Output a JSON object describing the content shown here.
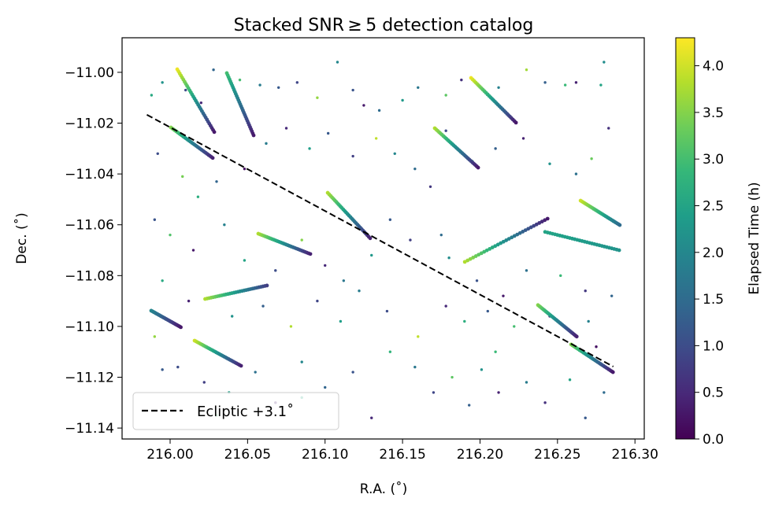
{
  "chart_data": {
    "type": "scatter",
    "title": "Stacked SNR ≥ 5 detection catalog",
    "xlabel": "R.A. (˚)",
    "ylabel": "Dec. (˚)",
    "xlim": [
      215.969,
      216.306
    ],
    "ylim": [
      -11.1443,
      -10.9864
    ],
    "xticks": [
      216.0,
      216.05,
      216.1,
      216.15,
      216.2,
      216.25,
      216.3
    ],
    "xtick_labels": [
      "216.00",
      "216.05",
      "216.10",
      "216.15",
      "216.20",
      "216.25",
      "216.30"
    ],
    "yticks": [
      -11.0,
      -11.02,
      -11.04,
      -11.06,
      -11.08,
      -11.1,
      -11.12,
      -11.14
    ],
    "ytick_labels": [
      "−11.00",
      "−11.02",
      "−11.04",
      "−11.06",
      "−11.08",
      "−11.10",
      "−11.12",
      "−11.14"
    ],
    "grid": false,
    "colorbar": {
      "label": "Elapsed Time (h)",
      "colormap": "viridis",
      "range": [
        0.0,
        4.3
      ],
      "ticks": [
        0.0,
        0.5,
        1.0,
        1.5,
        2.0,
        2.5,
        3.0,
        3.5,
        4.0
      ],
      "tick_labels": [
        "0.0",
        "0.5",
        "1.0",
        "1.5",
        "2.0",
        "2.5",
        "3.0",
        "3.5",
        "4.0"
      ]
    },
    "legend": {
      "placement": "lower-left",
      "entries": [
        {
          "label": "Ecliptic +3.1˚",
          "style": "dashed",
          "color": "#000000"
        }
      ]
    },
    "ecliptic_line": {
      "ra": [
        215.985,
        216.286
      ],
      "dec": [
        -11.0167,
        -11.1158
      ]
    },
    "tracks": [
      {
        "ra": [
          216.0046,
          216.0285
        ],
        "dec": [
          -10.9988,
          -11.0235
        ],
        "t": [
          4.2,
          0.3
        ]
      },
      {
        "ra": [
          216.0366,
          216.0539
        ],
        "dec": [
          -11.0003,
          -11.0248
        ],
        "t": [
          3.0,
          0.3
        ]
      },
      {
        "ra": [
          216.0005,
          216.0275
        ],
        "dec": [
          -11.0217,
          -11.0337
        ],
        "t": [
          3.5,
          0.4
        ]
      },
      {
        "ra": [
          216.1942,
          216.2232
        ],
        "dec": [
          -11.0022,
          -11.0198
        ],
        "t": [
          4.2,
          0.3
        ]
      },
      {
        "ra": [
          216.1708,
          216.1988
        ],
        "dec": [
          -11.022,
          -11.0375
        ],
        "t": [
          3.8,
          0.3
        ]
      },
      {
        "ra": [
          216.1017,
          216.1291
        ],
        "dec": [
          -11.0474,
          -11.0653
        ],
        "t": [
          3.8,
          0.4
        ]
      },
      {
        "ra": [
          216.0569,
          216.0905
        ],
        "dec": [
          -11.0635,
          -11.0715
        ],
        "t": [
          3.8,
          0.4
        ]
      },
      {
        "ra": [
          216.1902,
          216.2436
        ],
        "dec": [
          -11.0746,
          -11.0576
        ],
        "t": [
          3.8,
          0.3
        ]
      },
      {
        "ra": [
          216.0226,
          216.0625
        ],
        "dec": [
          -11.0892,
          -11.0839
        ],
        "t": [
          3.8,
          0.8
        ]
      },
      {
        "ra": [
          215.9878,
          216.0069
        ],
        "dec": [
          -11.0938,
          -11.1003
        ],
        "t": [
          2.0,
          0.3
        ]
      },
      {
        "ra": [
          216.0158,
          216.0458
        ],
        "dec": [
          -11.1056,
          -11.1155
        ],
        "t": [
          4.0,
          0.4
        ]
      },
      {
        "ra": [
          216.2374,
          216.2624
        ],
        "dec": [
          -11.0916,
          -11.104
        ],
        "t": [
          3.5,
          0.4
        ]
      },
      {
        "ra": [
          216.2649,
          216.2902
        ],
        "dec": [
          -11.0505,
          -11.0601
        ],
        "t": [
          4.0,
          1.5
        ]
      },
      {
        "ra": [
          216.242,
          216.2898
        ],
        "dec": [
          -11.0628,
          -11.07
        ],
        "t": [
          2.5,
          2.2
        ]
      },
      {
        "ra": [
          216.2588,
          216.2858
        ],
        "dec": [
          -11.1071,
          -11.118
        ],
        "t": [
          3.5,
          0.3
        ]
      }
    ],
    "points": [
      [
        215.988,
        -11.009,
        2.6
      ],
      [
        215.995,
        -11.004,
        2.2
      ],
      [
        216.01,
        -11.007,
        1.0
      ],
      [
        216.02,
        -11.012,
        0.5
      ],
      [
        216.028,
        -10.999,
        1.4
      ],
      [
        216.045,
        -11.003,
        3.0
      ],
      [
        216.058,
        -11.005,
        1.8
      ],
      [
        216.07,
        -11.006,
        1.2
      ],
      [
        216.082,
        -11.004,
        0.9
      ],
      [
        216.095,
        -11.01,
        3.6
      ],
      [
        216.108,
        -10.996,
        2.0
      ],
      [
        216.118,
        -11.007,
        1.1
      ],
      [
        216.125,
        -11.013,
        0.3
      ],
      [
        216.135,
        -11.015,
        1.5
      ],
      [
        216.15,
        -11.011,
        2.3
      ],
      [
        216.16,
        -11.006,
        1.7
      ],
      [
        216.178,
        -11.009,
        3.2
      ],
      [
        216.188,
        -11.003,
        0.6
      ],
      [
        216.212,
        -11.006,
        1.9
      ],
      [
        216.23,
        -10.999,
        3.7
      ],
      [
        216.242,
        -11.004,
        1.3
      ],
      [
        216.255,
        -11.005,
        2.9
      ],
      [
        216.262,
        -11.004,
        0.4
      ],
      [
        216.278,
        -11.005,
        2.5
      ],
      [
        216.28,
        -10.996,
        2.1
      ],
      [
        215.992,
        -11.032,
        1.0
      ],
      [
        216.008,
        -11.041,
        3.4
      ],
      [
        216.018,
        -11.049,
        2.7
      ],
      [
        216.03,
        -11.043,
        1.4
      ],
      [
        216.048,
        -11.038,
        0.2
      ],
      [
        216.062,
        -11.028,
        1.8
      ],
      [
        216.075,
        -11.022,
        0.5
      ],
      [
        216.09,
        -11.03,
        2.4
      ],
      [
        216.102,
        -11.024,
        1.2
      ],
      [
        216.118,
        -11.033,
        0.8
      ],
      [
        216.133,
        -11.026,
        3.9
      ],
      [
        216.145,
        -11.032,
        2.0
      ],
      [
        216.158,
        -11.038,
        1.5
      ],
      [
        216.168,
        -11.045,
        0.7
      ],
      [
        216.178,
        -11.023,
        1.0
      ],
      [
        216.195,
        -11.035,
        2.8
      ],
      [
        216.21,
        -11.03,
        1.3
      ],
      [
        216.228,
        -11.026,
        0.4
      ],
      [
        216.245,
        -11.036,
        2.2
      ],
      [
        216.262,
        -11.04,
        1.6
      ],
      [
        216.272,
        -11.034,
        3.3
      ],
      [
        216.283,
        -11.022,
        0.6
      ],
      [
        215.99,
        -11.058,
        1.1
      ],
      [
        216.0,
        -11.064,
        3.1
      ],
      [
        216.015,
        -11.07,
        0.3
      ],
      [
        216.035,
        -11.06,
        1.9
      ],
      [
        216.048,
        -11.074,
        2.5
      ],
      [
        216.068,
        -11.078,
        1.0
      ],
      [
        216.085,
        -11.066,
        3.5
      ],
      [
        216.1,
        -11.076,
        0.5
      ],
      [
        216.112,
        -11.082,
        1.7
      ],
      [
        216.13,
        -11.072,
        2.3
      ],
      [
        216.142,
        -11.058,
        1.2
      ],
      [
        216.155,
        -11.066,
        0.8
      ],
      [
        216.175,
        -11.064,
        1.5
      ],
      [
        216.18,
        -11.073,
        2.1
      ],
      [
        216.198,
        -11.082,
        1.1
      ],
      [
        216.215,
        -11.088,
        0.3
      ],
      [
        216.23,
        -11.078,
        1.6
      ],
      [
        216.252,
        -11.08,
        2.9
      ],
      [
        216.268,
        -11.086,
        0.7
      ],
      [
        216.285,
        -11.088,
        1.4
      ],
      [
        215.995,
        -11.082,
        2.6
      ],
      [
        216.012,
        -11.09,
        0.4
      ],
      [
        216.04,
        -11.096,
        2.2
      ],
      [
        216.06,
        -11.092,
        1.3
      ],
      [
        216.078,
        -11.1,
        3.8
      ],
      [
        216.095,
        -11.09,
        0.9
      ],
      [
        216.11,
        -11.098,
        2.4
      ],
      [
        216.122,
        -11.086,
        1.8
      ],
      [
        216.14,
        -11.094,
        1.0
      ],
      [
        216.178,
        -11.092,
        0.5
      ],
      [
        216.19,
        -11.098,
        2.7
      ],
      [
        216.205,
        -11.094,
        1.2
      ],
      [
        216.222,
        -11.1,
        3.0
      ],
      [
        216.245,
        -11.096,
        0.6
      ],
      [
        216.27,
        -11.098,
        1.9
      ],
      [
        215.99,
        -11.104,
        3.6
      ],
      [
        215.995,
        -11.117,
        1.2
      ],
      [
        216.005,
        -11.116,
        1.0
      ],
      [
        216.022,
        -11.122,
        0.8
      ],
      [
        216.038,
        -11.126,
        2.4
      ],
      [
        216.055,
        -11.118,
        1.6
      ],
      [
        216.068,
        -11.13,
        0.3
      ],
      [
        216.085,
        -11.114,
        2.0
      ],
      [
        216.1,
        -11.124,
        1.4
      ],
      [
        216.118,
        -11.118,
        1.1
      ],
      [
        216.13,
        -11.136,
        0.5
      ],
      [
        216.142,
        -11.11,
        2.8
      ],
      [
        216.158,
        -11.116,
        1.7
      ],
      [
        216.17,
        -11.126,
        0.9
      ],
      [
        216.182,
        -11.12,
        3.2
      ],
      [
        216.193,
        -11.131,
        1.3
      ],
      [
        216.201,
        -11.117,
        2.2
      ],
      [
        216.212,
        -11.126,
        0.4
      ],
      [
        216.23,
        -11.122,
        1.8
      ],
      [
        216.242,
        -11.13,
        0.6
      ],
      [
        216.258,
        -11.121,
        2.5
      ],
      [
        216.268,
        -11.136,
        1.2
      ],
      [
        216.28,
        -11.126,
        1.5
      ],
      [
        216.03,
        -11.135,
        3.0
      ],
      [
        216.085,
        -11.128,
        2.6
      ],
      [
        216.16,
        -11.104,
        3.9
      ],
      [
        216.21,
        -11.11,
        2.9
      ],
      [
        216.275,
        -11.108,
        0.2
      ]
    ]
  }
}
